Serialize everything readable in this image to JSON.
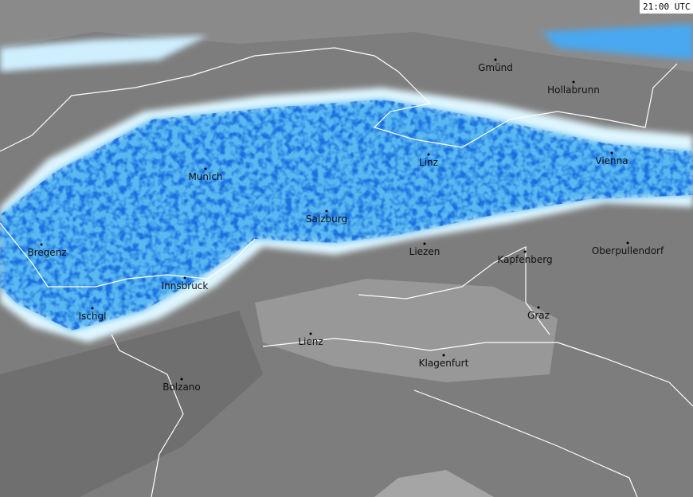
{
  "timestamp": "21:00 UTC",
  "cities": [
    "Gmünd",
    "Hollabrunn",
    "Linz",
    "Vienna",
    "Munich",
    "Salzburg",
    "Bregenz",
    "Liezen",
    "Kapfenberg",
    "Oberpullendorf",
    "Innsbruck",
    "Ischgl",
    "Graz",
    "Lienz",
    "Klagenfurt",
    "Bolzano"
  ]
}
